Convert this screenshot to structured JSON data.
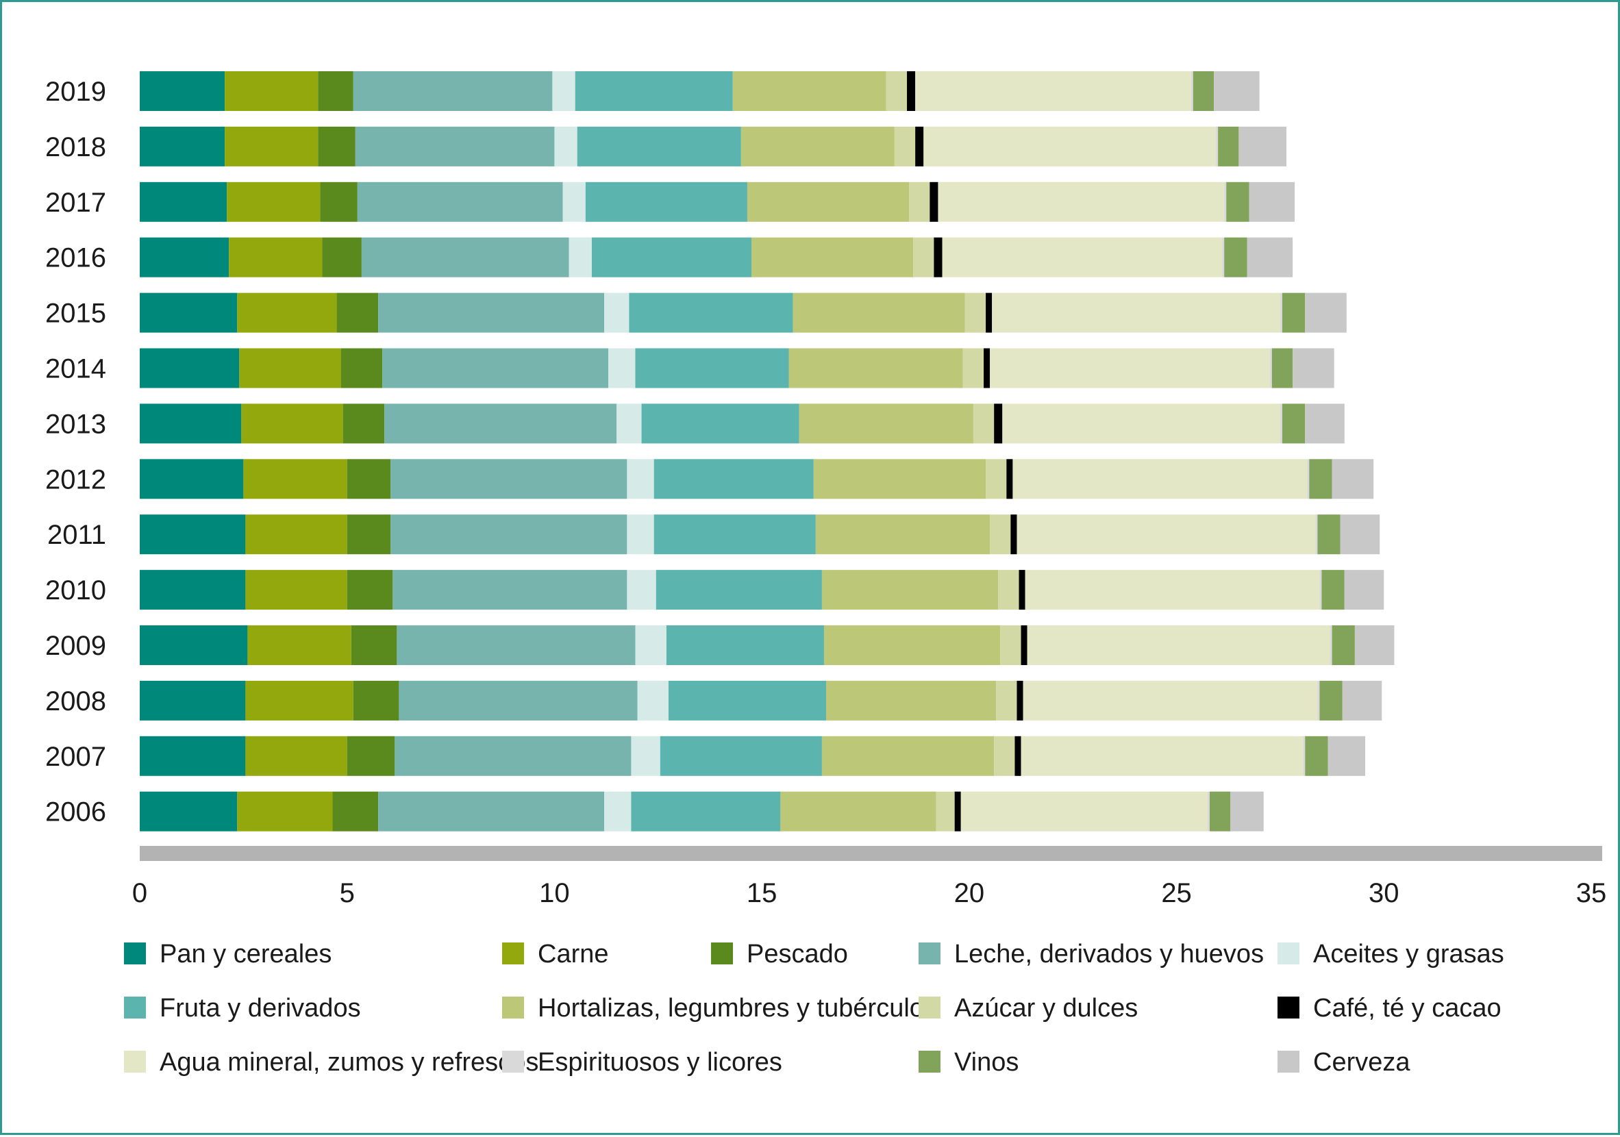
{
  "chart_data": {
    "type": "bar",
    "orientation": "horizontal",
    "stacked": true,
    "title": "",
    "xlabel": "",
    "ylabel": "",
    "xlim": [
      0,
      35
    ],
    "xticks": [
      0,
      5,
      10,
      15,
      20,
      25,
      30,
      35
    ],
    "grid": false,
    "legend_position": "bottom",
    "categories": [
      "2019",
      "2018",
      "2017",
      "2016",
      "2015",
      "2014",
      "2013",
      "2012",
      "2011",
      "2010",
      "2009",
      "2008",
      "2007",
      "2006"
    ],
    "series": [
      {
        "name": "Pan y cereales",
        "color": "#00897b",
        "values": [
          2.05,
          2.05,
          2.1,
          2.15,
          2.35,
          2.4,
          2.45,
          2.5,
          2.55,
          2.55,
          2.6,
          2.55,
          2.55,
          2.35
        ]
      },
      {
        "name": "Carne",
        "color": "#93a80c",
        "values": [
          2.25,
          2.25,
          2.25,
          2.25,
          2.4,
          2.45,
          2.45,
          2.5,
          2.45,
          2.45,
          2.5,
          2.6,
          2.45,
          2.3
        ]
      },
      {
        "name": "Pescado",
        "color": "#5a8a1e",
        "values": [
          0.85,
          0.9,
          0.9,
          0.95,
          1.0,
          1.0,
          1.0,
          1.05,
          1.05,
          1.1,
          1.1,
          1.1,
          1.15,
          1.1
        ]
      },
      {
        "name": "Leche, derivados y huevos",
        "color": "#78b4ae",
        "values": [
          4.8,
          4.8,
          4.95,
          5.0,
          5.45,
          5.45,
          5.6,
          5.7,
          5.7,
          5.65,
          5.75,
          5.75,
          5.7,
          5.45
        ]
      },
      {
        "name": "Aceites y grasas",
        "color": "#d6ebe8",
        "values": [
          0.55,
          0.55,
          0.55,
          0.55,
          0.6,
          0.65,
          0.6,
          0.65,
          0.65,
          0.7,
          0.75,
          0.75,
          0.7,
          0.65
        ]
      },
      {
        "name": "Fruta y derivados",
        "color": "#5bb4ae",
        "values": [
          3.8,
          3.95,
          3.9,
          3.85,
          3.95,
          3.7,
          3.8,
          3.85,
          3.9,
          4.0,
          3.8,
          3.8,
          3.9,
          3.6
        ]
      },
      {
        "name": "Hortalizas, legumbres y tubérculos",
        "color": "#bcc778",
        "values": [
          3.7,
          3.7,
          3.9,
          3.9,
          4.15,
          4.2,
          4.2,
          4.15,
          4.2,
          4.25,
          4.25,
          4.1,
          4.15,
          3.75
        ]
      },
      {
        "name": "Azúcar y dulces",
        "color": "#d2d9a4",
        "values": [
          0.5,
          0.5,
          0.5,
          0.5,
          0.5,
          0.5,
          0.5,
          0.5,
          0.5,
          0.5,
          0.5,
          0.5,
          0.5,
          0.45
        ]
      },
      {
        "name": "Café, té y cacao",
        "color": "#000000",
        "values": [
          0.2,
          0.2,
          0.2,
          0.2,
          0.15,
          0.15,
          0.2,
          0.15,
          0.15,
          0.15,
          0.15,
          0.15,
          0.15,
          0.15
        ]
      },
      {
        "name": "Agua mineral, zumos y refrescos",
        "color": "#e3e7c6",
        "values": [
          6.65,
          7.05,
          6.9,
          6.75,
          6.95,
          6.75,
          6.7,
          7.1,
          7.2,
          7.1,
          7.3,
          7.1,
          6.8,
          5.95
        ]
      },
      {
        "name": "Espirituosos y licores",
        "color": "#d9d9d9",
        "values": [
          0.05,
          0.05,
          0.05,
          0.05,
          0.05,
          0.05,
          0.05,
          0.05,
          0.05,
          0.05,
          0.05,
          0.05,
          0.05,
          0.05
        ]
      },
      {
        "name": "Vinos",
        "color": "#82a45a",
        "values": [
          0.5,
          0.5,
          0.55,
          0.55,
          0.55,
          0.5,
          0.55,
          0.55,
          0.55,
          0.55,
          0.55,
          0.55,
          0.55,
          0.5
        ]
      },
      {
        "name": "Cerveza",
        "color": "#c8c8c8",
        "values": [
          1.1,
          1.15,
          1.1,
          1.1,
          1.0,
          1.0,
          0.95,
          1.0,
          0.95,
          0.95,
          0.95,
          0.95,
          0.9,
          0.8
        ]
      }
    ]
  }
}
